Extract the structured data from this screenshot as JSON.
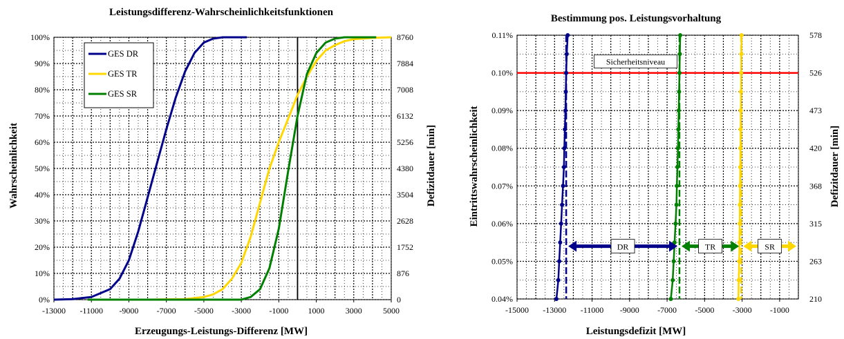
{
  "chart_data": [
    {
      "type": "line",
      "title": "Leistungsdifferenz-Wahrscheinlichkeitsfunktionen",
      "xlabel": "Erzeugungs-Leistungs-Differenz [MW]",
      "ylabel": "Wahrscheinlichkeit",
      "ylabel_right": "Defizitdauer [min]",
      "xlim": [
        -13000,
        5000
      ],
      "ylim": [
        0,
        1
      ],
      "x_ticks": [
        "-13000",
        "-11000",
        "-9000",
        "-7000",
        "-5000",
        "-3000",
        "-1000",
        "1000",
        "3000",
        "5000"
      ],
      "y_ticks": [
        "0%",
        "10%",
        "20%",
        "30%",
        "40%",
        "50%",
        "60%",
        "70%",
        "80%",
        "90%",
        "100%"
      ],
      "y2_ticks": [
        "0",
        "876",
        "1752",
        "2628",
        "3504",
        "4380",
        "5256",
        "6132",
        "7008",
        "7884",
        "8760"
      ],
      "grid": true,
      "legend": "top-left",
      "series": [
        {
          "name": "GES DR",
          "color": "#00008B",
          "points": [
            [
              -13000,
              0
            ],
            [
              -12000,
              0.002
            ],
            [
              -11000,
              0.01
            ],
            [
              -10000,
              0.04
            ],
            [
              -9500,
              0.08
            ],
            [
              -9000,
              0.15
            ],
            [
              -8500,
              0.26
            ],
            [
              -8000,
              0.39
            ],
            [
              -7500,
              0.52
            ],
            [
              -7000,
              0.65
            ],
            [
              -6500,
              0.77
            ],
            [
              -6000,
              0.87
            ],
            [
              -5500,
              0.94
            ],
            [
              -5000,
              0.98
            ],
            [
              -4500,
              0.995
            ],
            [
              -4000,
              1.0
            ],
            [
              -2700,
              1.0
            ]
          ]
        },
        {
          "name": "GES TR",
          "color": "#FFD700",
          "points": [
            [
              -11200,
              0
            ],
            [
              -8000,
              0
            ],
            [
              -6000,
              0.002
            ],
            [
              -5000,
              0.01
            ],
            [
              -4500,
              0.02
            ],
            [
              -4000,
              0.04
            ],
            [
              -3500,
              0.08
            ],
            [
              -3000,
              0.14
            ],
            [
              -2500,
              0.24
            ],
            [
              -2000,
              0.37
            ],
            [
              -1500,
              0.5
            ],
            [
              -1000,
              0.6
            ],
            [
              -500,
              0.69
            ],
            [
              0,
              0.78
            ],
            [
              500,
              0.85
            ],
            [
              1000,
              0.91
            ],
            [
              1500,
              0.95
            ],
            [
              2000,
              0.97
            ],
            [
              2500,
              0.985
            ],
            [
              3000,
              0.993
            ],
            [
              4000,
              0.998
            ],
            [
              5000,
              1.0
            ]
          ]
        },
        {
          "name": "GES SR",
          "color": "#008000",
          "points": [
            [
              -11200,
              0
            ],
            [
              -3000,
              0
            ],
            [
              -2500,
              0.01
            ],
            [
              -2000,
              0.04
            ],
            [
              -1500,
              0.12
            ],
            [
              -1000,
              0.27
            ],
            [
              -500,
              0.49
            ],
            [
              0,
              0.7
            ],
            [
              500,
              0.86
            ],
            [
              1000,
              0.94
            ],
            [
              1500,
              0.98
            ],
            [
              2000,
              0.995
            ],
            [
              2500,
              1.0
            ],
            [
              4200,
              1.0
            ]
          ]
        }
      ]
    },
    {
      "type": "line",
      "title": "Bestimmung pos. Leistungsvorhaltung",
      "xlabel": "Leistungsdefizit [MW]",
      "ylabel": "Eintrittswahrscheinlichkeit",
      "ylabel_right": "Defizitdauer [min]",
      "xlim": [
        -15000,
        0
      ],
      "ylim": [
        0.0004,
        0.0011
      ],
      "x_ticks": [
        "-15000",
        "-13000",
        "-11000",
        "-9000",
        "-7000",
        "-5000",
        "-3000",
        "-1000"
      ],
      "y_ticks": [
        "0.04%",
        "0.05%",
        "0.06%",
        "0.07%",
        "0.08%",
        "0.09%",
        "0.10%",
        "0.11%"
      ],
      "y2_ticks": [
        "210",
        "263",
        "315",
        "368",
        "420",
        "473",
        "526",
        "578"
      ],
      "grid": true,
      "reference_line": {
        "label": "Sicherheitsniveau",
        "y": 0.001,
        "color": "#FF0000"
      },
      "series": [
        {
          "name": "DR",
          "color": "#00008B",
          "points": [
            [
              -12900,
              0.0004
            ],
            [
              -12800,
              0.00045
            ],
            [
              -12750,
              0.0005
            ],
            [
              -12700,
              0.00055
            ],
            [
              -12650,
              0.0006
            ],
            [
              -12600,
              0.00065
            ],
            [
              -12550,
              0.0007
            ],
            [
              -12500,
              0.00075
            ],
            [
              -12480,
              0.0008
            ],
            [
              -12450,
              0.00085
            ],
            [
              -12420,
              0.0009
            ],
            [
              -12400,
              0.00095
            ],
            [
              -12380,
              0.001
            ],
            [
              -12350,
              0.00105
            ],
            [
              -12300,
              0.0011
            ]
          ],
          "threshold_x": -12380
        },
        {
          "name": "TR",
          "color": "#008000",
          "points": [
            [
              -6800,
              0.0004
            ],
            [
              -6700,
              0.00045
            ],
            [
              -6650,
              0.0005
            ],
            [
              -6600,
              0.00055
            ],
            [
              -6550,
              0.0006
            ],
            [
              -6500,
              0.00065
            ],
            [
              -6480,
              0.0007
            ],
            [
              -6450,
              0.00075
            ],
            [
              -6420,
              0.0008
            ],
            [
              -6400,
              0.00085
            ],
            [
              -6380,
              0.0009
            ],
            [
              -6360,
              0.00095
            ],
            [
              -6340,
              0.001
            ],
            [
              -6320,
              0.00105
            ],
            [
              -6300,
              0.0011
            ]
          ],
          "threshold_x": -6340
        },
        {
          "name": "SR",
          "color": "#FFD700",
          "points": [
            [
              -3200,
              0.0004
            ],
            [
              -3180,
              0.00045
            ],
            [
              -3160,
              0.0005
            ],
            [
              -3140,
              0.00055
            ],
            [
              -3130,
              0.0006
            ],
            [
              -3120,
              0.00065
            ],
            [
              -3110,
              0.0007
            ],
            [
              -3100,
              0.00075
            ],
            [
              -3090,
              0.0008
            ],
            [
              -3080,
              0.00085
            ],
            [
              -3070,
              0.0009
            ],
            [
              -3060,
              0.00095
            ],
            [
              -3050,
              0.001
            ],
            [
              -3040,
              0.00105
            ],
            [
              -3030,
              0.0011
            ]
          ],
          "threshold_x": -3050
        }
      ],
      "arrows": [
        {
          "label": "DR",
          "from": -12380,
          "to": -6340,
          "y": 0.00054,
          "color": "#00008B"
        },
        {
          "label": "TR",
          "from": -6340,
          "to": -3050,
          "y": 0.00054,
          "color": "#008000"
        },
        {
          "label": "SR",
          "from": -3050,
          "to": 0,
          "y": 0.00054,
          "color": "#FFD700"
        }
      ]
    }
  ]
}
